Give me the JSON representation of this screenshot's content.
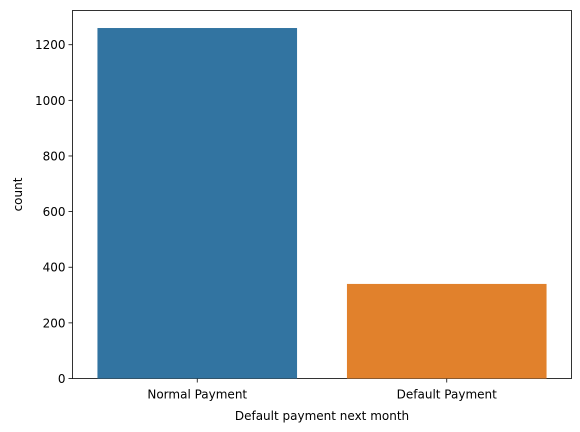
{
  "chart_data": {
    "type": "bar",
    "categories": [
      "Normal Payment",
      "Default Payment"
    ],
    "values": [
      1260,
      340
    ],
    "colors": [
      "#3274a1",
      "#e1812c"
    ],
    "title": "",
    "xlabel": "Default payment next month",
    "ylabel": "count",
    "ylim": [
      0,
      1323
    ],
    "yticks": [
      0,
      200,
      400,
      600,
      800,
      1000,
      1200
    ],
    "grid": false
  }
}
